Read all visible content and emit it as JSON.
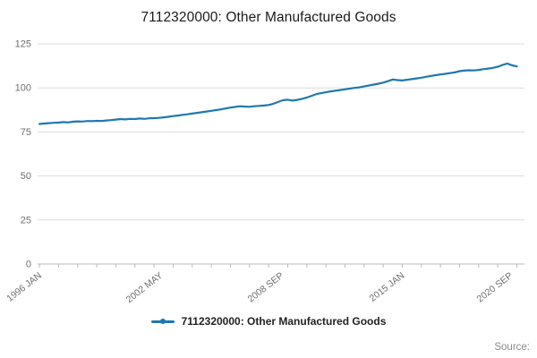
{
  "title": "7112320000: Other Manufactured Goods",
  "legend": {
    "label": "7112320000: Other Manufactured Goods"
  },
  "source_label": "Source:",
  "chart_data": {
    "type": "line",
    "title": "7112320000: Other Manufactured Goods",
    "xlabel": "",
    "ylabel": "",
    "grid": true,
    "legend_position": "bottom",
    "ylim": [
      0,
      125
    ],
    "y_ticks": [
      0,
      25,
      50,
      75,
      100,
      125
    ],
    "xlim": [
      1995.9,
      2021.4
    ],
    "x_minor_tick_start": 1996,
    "x_minor_tick_end": 2021,
    "x_tick_labels": [
      {
        "label": "1996 JAN",
        "x": 1996.0
      },
      {
        "label": "2002 MAY",
        "x": 2002.3333
      },
      {
        "label": "2008 SEP",
        "x": 2008.6667
      },
      {
        "label": "2015 JAN",
        "x": 2015.0
      },
      {
        "label": "2020 SEP",
        "x": 2020.6667
      }
    ],
    "colors": {
      "line": "#1f78b0",
      "grid": "#dcdcdc",
      "axis": "#bdbdbd",
      "tick_text": "#6f6f6f"
    },
    "series": [
      {
        "name": "7112320000: Other Manufactured Goods",
        "x_start": 1996.0,
        "x_step": 0.25,
        "values": [
          79.5,
          79.8,
          80.0,
          80.2,
          80.3,
          80.6,
          80.4,
          80.8,
          81.0,
          80.9,
          81.2,
          81.1,
          81.3,
          81.2,
          81.5,
          81.7,
          82.0,
          82.3,
          82.1,
          82.4,
          82.3,
          82.6,
          82.4,
          82.7,
          82.8,
          83.0,
          83.3,
          83.6,
          84.0,
          84.3,
          84.7,
          85.0,
          85.4,
          85.8,
          86.2,
          86.6,
          87.0,
          87.4,
          87.8,
          88.3,
          88.8,
          89.2,
          89.6,
          89.4,
          89.3,
          89.6,
          89.8,
          90.0,
          90.3,
          91.0,
          92.0,
          93.0,
          93.3,
          92.8,
          93.2,
          93.8,
          94.5,
          95.5,
          96.5,
          97.0,
          97.5,
          98.0,
          98.4,
          98.8,
          99.2,
          99.6,
          100.0,
          100.3,
          100.8,
          101.3,
          101.9,
          102.4,
          103.0,
          103.8,
          104.8,
          104.4,
          104.2,
          104.6,
          105.0,
          105.4,
          105.8,
          106.3,
          106.8,
          107.2,
          107.6,
          108.0,
          108.4,
          108.8,
          109.5,
          109.8,
          110.0,
          109.9,
          110.2,
          110.6,
          111.0,
          111.4,
          112.0,
          113.0,
          113.8,
          112.8,
          112.2
        ]
      }
    ]
  }
}
